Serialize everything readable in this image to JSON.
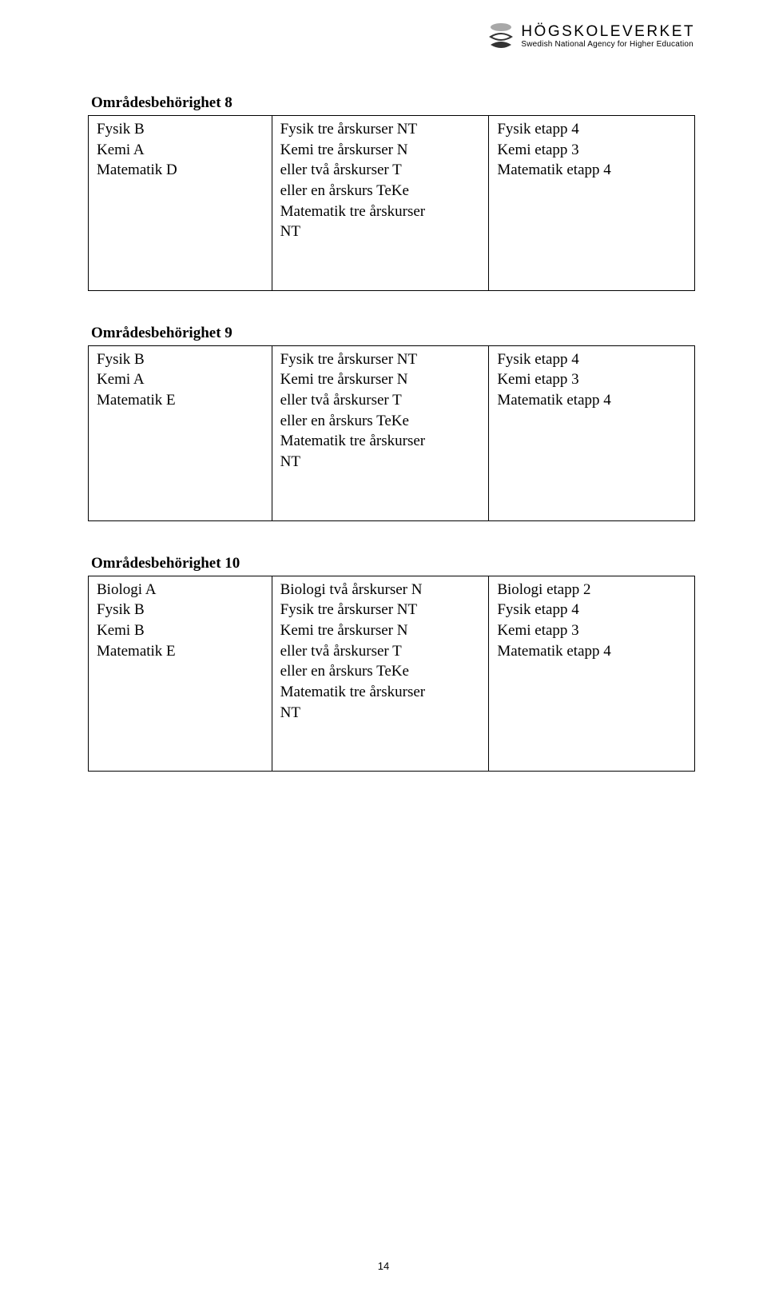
{
  "logo": {
    "main": "HÖGSKOLEVERKET",
    "sub": "Swedish National Agency for Higher Education"
  },
  "sections": [
    {
      "title": "Områdesbehörighet 8",
      "col_a": [
        "Fysik B",
        "Kemi A",
        "Matematik D"
      ],
      "col_b": [
        "Fysik tre årskurser NT",
        "Kemi tre årskurser N",
        "eller två årskurser T",
        "eller en årskurs TeKe",
        "Matematik tre årskurser",
        "NT"
      ],
      "col_c": [
        "Fysik etapp 4",
        "Kemi etapp 3",
        "Matematik etapp 4"
      ]
    },
    {
      "title": "Områdesbehörighet 9",
      "col_a": [
        "Fysik B",
        "Kemi A",
        "Matematik E"
      ],
      "col_b": [
        "Fysik tre årskurser NT",
        "Kemi tre årskurser N",
        "eller två årskurser T",
        "eller en årskurs TeKe",
        "Matematik tre årskurser",
        "NT"
      ],
      "col_c": [
        "Fysik etapp 4",
        "Kemi etapp 3",
        "Matematik etapp 4"
      ]
    },
    {
      "title": "Områdesbehörighet 10",
      "col_a": [
        "Biologi A",
        "Fysik B",
        "Kemi B",
        "Matematik E"
      ],
      "col_b": [
        "Biologi två årskurser N",
        "Fysik tre årskurser NT",
        "Kemi tre årskurser N",
        "eller två årskurser T",
        "eller en årskurs TeKe",
        "Matematik tre årskurser",
        "NT"
      ],
      "col_c": [
        "Biologi etapp 2",
        "Fysik etapp 4",
        "Kemi etapp 3",
        "Matematik etapp 4"
      ]
    }
  ],
  "page_number": "14"
}
